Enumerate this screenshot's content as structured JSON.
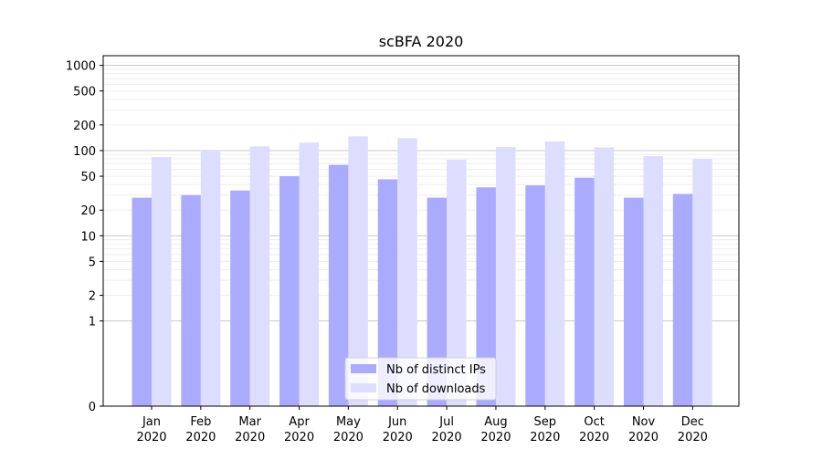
{
  "chart_data": {
    "type": "bar",
    "title": "scBFA 2020",
    "xlabel": "",
    "ylabel": "",
    "yscale": "symlog",
    "ylim": [
      0,
      1300
    ],
    "y_ticks": [
      0,
      1,
      2,
      5,
      10,
      20,
      50,
      100,
      200,
      500,
      1000
    ],
    "grid": "horizontal",
    "legend_position": "bottom-center",
    "categories": [
      "Jan\n2020",
      "Feb\n2020",
      "Mar\n2020",
      "Apr\n2020",
      "May\n2020",
      "Jun\n2020",
      "Jul\n2020",
      "Aug\n2020",
      "Sep\n2020",
      "Oct\n2020",
      "Nov\n2020",
      "Dec\n2020"
    ],
    "series": [
      {
        "name": "Nb of distinct IPs",
        "color": "#aaaaff",
        "values": [
          28,
          30,
          34,
          50,
          68,
          46,
          28,
          37,
          39,
          48,
          28,
          31
        ]
      },
      {
        "name": "Nb of downloads",
        "color": "#ddddff",
        "values": [
          84,
          102,
          112,
          124,
          147,
          140,
          78,
          110,
          128,
          109,
          86,
          80
        ]
      }
    ]
  }
}
